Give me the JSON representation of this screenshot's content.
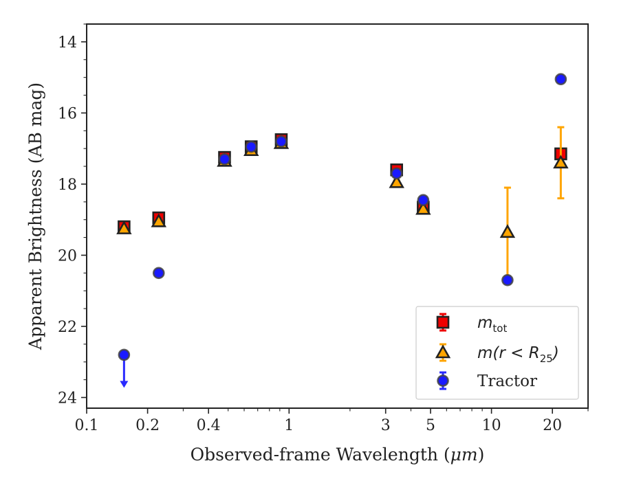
{
  "chart_data": {
    "type": "scatter",
    "xlabel_prefix": "Observed-frame Wavelength (",
    "xlabel_unit": "μm",
    "xlabel_suffix": ")",
    "ylabel": "Apparent Brightness (AB mag)",
    "xscale": "log",
    "xlim": [
      0.1,
      30
    ],
    "ylim": [
      24.3,
      13.5
    ],
    "y_inverted": true,
    "x_ticks": [
      {
        "value": 0.1,
        "label": "0.1"
      },
      {
        "value": 0.2,
        "label": "0.2"
      },
      {
        "value": 0.4,
        "label": "0.4"
      },
      {
        "value": 1,
        "label": "1"
      },
      {
        "value": 3,
        "label": "3"
      },
      {
        "value": 5,
        "label": "5"
      },
      {
        "value": 10,
        "label": "10"
      },
      {
        "value": 20,
        "label": "20"
      }
    ],
    "x_minor_ticks": [
      0.3,
      0.5,
      0.6,
      0.7,
      0.8,
      0.9,
      2,
      4,
      6,
      7,
      8,
      9,
      30
    ],
    "y_ticks": [
      {
        "value": 14,
        "label": "14"
      },
      {
        "value": 16,
        "label": "16"
      },
      {
        "value": 18,
        "label": "18"
      },
      {
        "value": 20,
        "label": "20"
      },
      {
        "value": 22,
        "label": "22"
      },
      {
        "value": 24,
        "label": "24"
      }
    ],
    "y_minor_step": 0.5,
    "grid": false,
    "legend_position": "lower-right",
    "series": [
      {
        "name": "m_tot",
        "marker": "square",
        "color": "#ee0000",
        "edge_color": "#222222",
        "error_color": "#ee0000",
        "points": [
          {
            "x": 0.153,
            "y": 19.2,
            "err": 0.1
          },
          {
            "x": 0.227,
            "y": 18.95,
            "err": 0.1
          },
          {
            "x": 0.48,
            "y": 17.25,
            "err": 0.1
          },
          {
            "x": 0.65,
            "y": 16.95,
            "err": 0.1
          },
          {
            "x": 0.915,
            "y": 16.75,
            "err": 0.1
          },
          {
            "x": 3.4,
            "y": 17.6,
            "err": 0.1
          },
          {
            "x": 4.6,
            "y": 18.65,
            "err": 0.1
          },
          {
            "x": 22,
            "y": 17.15,
            "err": 0.1
          }
        ]
      },
      {
        "name": "m(r < R25)",
        "marker": "triangle",
        "color": "#ffa500",
        "edge_color": "#222222",
        "error_color": "#ffa500",
        "points": [
          {
            "x": 0.153,
            "y": 19.25,
            "err": 0.05
          },
          {
            "x": 0.227,
            "y": 19.05,
            "err": 0.05
          },
          {
            "x": 0.48,
            "y": 17.35,
            "err": 0.05
          },
          {
            "x": 0.65,
            "y": 17.05,
            "err": 0.05
          },
          {
            "x": 0.915,
            "y": 16.85,
            "err": 0.05
          },
          {
            "x": 3.4,
            "y": 17.95,
            "err": 0.05
          },
          {
            "x": 4.6,
            "y": 18.7,
            "err": 0.05
          },
          {
            "x": 12,
            "y": 19.35,
            "err": 1.25
          },
          {
            "x": 22,
            "y": 17.4,
            "err": 1.0
          }
        ]
      },
      {
        "name": "Tractor",
        "marker": "circle",
        "color": "#1a1aff",
        "edge_color": "#444444",
        "error_color": "#2a2aff",
        "points": [
          {
            "x": 0.153,
            "y": 22.8,
            "err": 0.05,
            "upper_limit": true
          },
          {
            "x": 0.227,
            "y": 20.5,
            "err": 0.05
          },
          {
            "x": 0.48,
            "y": 17.3,
            "err": 0.05
          },
          {
            "x": 0.65,
            "y": 16.95,
            "err": 0.05
          },
          {
            "x": 0.915,
            "y": 16.8,
            "err": 0.05
          },
          {
            "x": 3.4,
            "y": 17.7,
            "err": 0.05
          },
          {
            "x": 4.6,
            "y": 18.45,
            "err": 0.05
          },
          {
            "x": 12,
            "y": 20.7,
            "err": 0.05
          },
          {
            "x": 22,
            "y": 15.05,
            "err": 0.05
          }
        ]
      }
    ]
  },
  "legend": {
    "items": [
      {
        "math_main": "m",
        "math_sub": "tot",
        "math_tail": ""
      },
      {
        "math_main": "m(r < R",
        "math_sub": "25",
        "math_tail": ")"
      },
      {
        "text": "Tractor"
      }
    ]
  }
}
